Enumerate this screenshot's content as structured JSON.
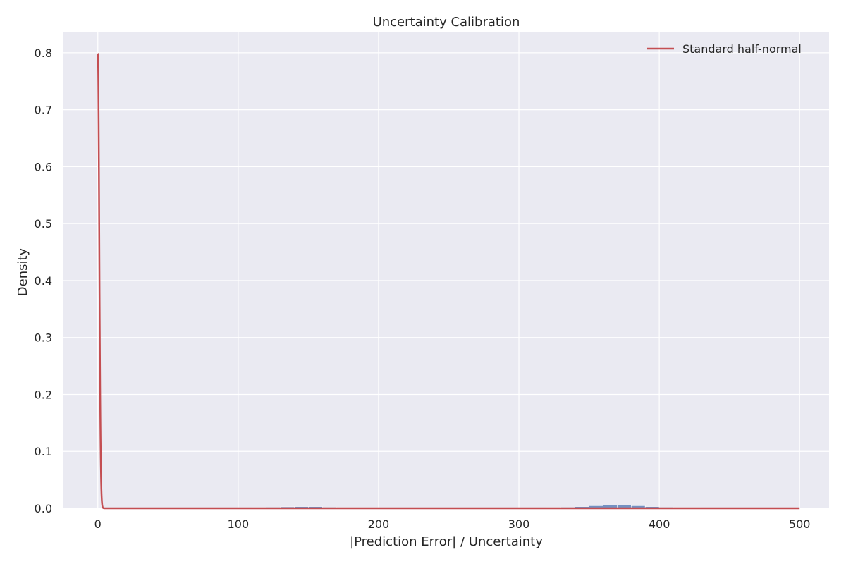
{
  "chart_data": {
    "type": "bar",
    "title": "Uncertainty Calibration",
    "xlabel": "|Prediction Error| / Uncertainty",
    "ylabel": "Density",
    "xlim": [
      -24.5,
      521
    ],
    "ylim": [
      0,
      0.837
    ],
    "xticks": [
      0,
      100,
      200,
      300,
      400,
      500
    ],
    "yticks": [
      0.0,
      0.1,
      0.2,
      0.3,
      0.4,
      0.5,
      0.6,
      0.7,
      0.8
    ],
    "xtick_labels": [
      "0",
      "100",
      "200",
      "300",
      "400",
      "500"
    ],
    "ytick_labels": [
      "0.0",
      "0.1",
      "0.2",
      "0.3",
      "0.4",
      "0.5",
      "0.6",
      "0.7",
      "0.8"
    ],
    "grid": true,
    "legend": {
      "position": "top-right",
      "entries": [
        "Standard half-normal"
      ]
    },
    "colors": {
      "background": "#eaeaf2",
      "grid": "#ffffff",
      "histogram": "#4c72b0",
      "curve": "#c44e52"
    },
    "histogram": {
      "bin_width": 10,
      "bins": [
        {
          "x0": 110,
          "density": 0.0005
        },
        {
          "x0": 120,
          "density": 0.002
        },
        {
          "x0": 130,
          "density": 0.0025
        },
        {
          "x0": 140,
          "density": 0.003
        },
        {
          "x0": 150,
          "density": 0.003
        },
        {
          "x0": 160,
          "density": 0.002
        },
        {
          "x0": 170,
          "density": 0.001
        },
        {
          "x0": 180,
          "density": 0.0005
        },
        {
          "x0": 190,
          "density": 0.0003
        },
        {
          "x0": 320,
          "density": 0.0005
        },
        {
          "x0": 330,
          "density": 0.002
        },
        {
          "x0": 340,
          "density": 0.003
        },
        {
          "x0": 350,
          "density": 0.0045
        },
        {
          "x0": 360,
          "density": 0.0055
        },
        {
          "x0": 370,
          "density": 0.0055
        },
        {
          "x0": 380,
          "density": 0.0045
        },
        {
          "x0": 390,
          "density": 0.003
        },
        {
          "x0": 400,
          "density": 0.002
        },
        {
          "x0": 410,
          "density": 0.001
        },
        {
          "x0": 420,
          "density": 0.0003
        }
      ]
    },
    "series": [
      {
        "name": "Standard half-normal",
        "type": "line",
        "x_range": [
          0,
          500
        ]
      }
    ]
  }
}
